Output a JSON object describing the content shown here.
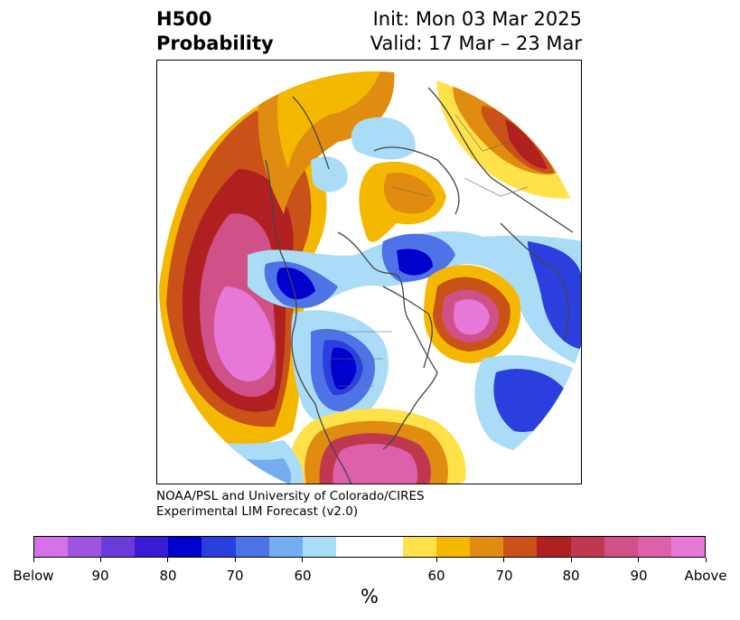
{
  "header": {
    "variable": "H500",
    "product": "Probability",
    "init": "Init: Mon 03 Mar 2025",
    "valid": "Valid: 17 Mar – 23 Mar"
  },
  "credit": {
    "line1": "NOAA/PSL and University of Colorado/CIRES",
    "line2": "Experimental LIM Forecast (v2.0)"
  },
  "colorbar": {
    "unit": "%",
    "colors": [
      "#d672e8",
      "#9d55e0",
      "#6b3adb",
      "#3a1bd4",
      "#0000cc",
      "#2a3fdd",
      "#4e73e6",
      "#74aef0",
      "#aadcf7",
      "#ffffff",
      "#ffffff",
      "#ffe24a",
      "#f5b800",
      "#e08c10",
      "#c85218",
      "#b02020",
      "#c03850",
      "#d05088",
      "#dd60a8",
      "#e878d8"
    ],
    "tick_labels": [
      "Below",
      "90",
      "80",
      "70",
      "60",
      "60",
      "70",
      "80",
      "90",
      "Above"
    ]
  },
  "map": {
    "projection": "north polar stereographic",
    "legend_meaning": "probability of below / above normal 500 hPa height"
  }
}
